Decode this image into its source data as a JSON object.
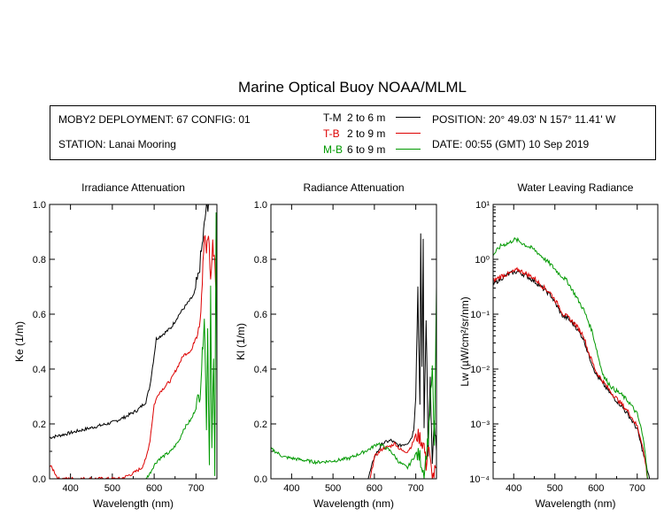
{
  "title": "Marine Optical Buoy NOAA/MLML",
  "info": {
    "deployment": "MOBY2 DEPLOYMENT: 67 CONFIG: 01",
    "station": "STATION: Lanai Mooring",
    "position": "POSITION: 20° 49.03' N   157° 11.41' W",
    "date": "DATE: 00:55 (GMT) 10 Sep 2019"
  },
  "legend": [
    {
      "code": "T-M",
      "range": "2 to 6  m",
      "color": "#000000"
    },
    {
      "code": "T-B",
      "range": "2 to 9  m",
      "color": "#dd0000"
    },
    {
      "code": "M-B",
      "range": "6 to 9  m",
      "color": "#009900"
    }
  ],
  "chart_data": [
    {
      "type": "line",
      "title": "Irradiance Attenuation",
      "xlabel": "Wavelength (nm)",
      "ylabel": "Ke  (1/m)",
      "xlim": [
        350,
        750
      ],
      "ylim": [
        0,
        1.0
      ],
      "xticks": [
        "400",
        "500",
        "600",
        "700"
      ],
      "yticks": [
        "0.0",
        "0.2",
        "0.4",
        "0.6",
        "0.8",
        "1.0"
      ],
      "series": [
        {
          "color": "#000000",
          "x": [
            350,
            380,
            420,
            460,
            500,
            530,
            560,
            580,
            590,
            600,
            605,
            615,
            640,
            660,
            680,
            695,
            705,
            715,
            720,
            725,
            730
          ],
          "y": [
            0.15,
            0.16,
            0.175,
            0.19,
            0.205,
            0.225,
            0.25,
            0.28,
            0.34,
            0.45,
            0.51,
            0.52,
            0.55,
            0.6,
            0.64,
            0.67,
            0.73,
            0.85,
            0.92,
            1.0,
            1.0
          ]
        },
        {
          "color": "#dd0000",
          "x": [
            350,
            360,
            370,
            520,
            550,
            570,
            580,
            590,
            600,
            610,
            640,
            660,
            670,
            690,
            700,
            710,
            715,
            720,
            725,
            730,
            735,
            740,
            745,
            750
          ],
          "y": [
            0.05,
            0.03,
            0.0,
            0.0,
            0.02,
            0.04,
            0.07,
            0.14,
            0.27,
            0.31,
            0.36,
            0.42,
            0.45,
            0.47,
            0.52,
            0.59,
            0.72,
            0.88,
            0.83,
            0.9,
            0.72,
            0.85,
            0.8,
            0.6
          ]
        },
        {
          "color": "#009900",
          "x": [
            580,
            590,
            600,
            610,
            640,
            660,
            670,
            690,
            700,
            710,
            715,
            720,
            725,
            728,
            732,
            735,
            738,
            742,
            745,
            748,
            750
          ],
          "y": [
            0.0,
            0.02,
            0.05,
            0.07,
            0.1,
            0.14,
            0.18,
            0.22,
            0.26,
            0.32,
            0.45,
            0.6,
            0.2,
            0.55,
            0.05,
            0.7,
            0.1,
            0.45,
            0.0,
            1.0,
            0.3
          ]
        }
      ]
    },
    {
      "type": "line",
      "title": "Radiance Attenuation",
      "xlabel": "Wavelength (nm)",
      "ylabel": "Kl  (1/m)",
      "xlim": [
        350,
        750
      ],
      "ylim": [
        0,
        1.0
      ],
      "xticks": [
        "400",
        "500",
        "600",
        "700"
      ],
      "yticks": [
        "0.0",
        "0.2",
        "0.4",
        "0.6",
        "0.8",
        "1.0"
      ],
      "series": [
        {
          "color": "#000000",
          "x": [
            585,
            600,
            620,
            640,
            660,
            680,
            690,
            695,
            700,
            705,
            710,
            712,
            715,
            718,
            720,
            725,
            730,
            735,
            740,
            745,
            750
          ],
          "y": [
            0.0,
            0.08,
            0.13,
            0.14,
            0.12,
            0.13,
            0.15,
            0.18,
            0.3,
            0.7,
            0.25,
            0.9,
            0.4,
            0.85,
            0.2,
            0.6,
            0.1,
            0.35,
            0.05,
            0.2,
            0.1
          ]
        },
        {
          "color": "#dd0000",
          "x": [
            590,
            600,
            620,
            640,
            650,
            660,
            670,
            680,
            690,
            700,
            710,
            720,
            725,
            730,
            740,
            750
          ],
          "y": [
            0.0,
            0.08,
            0.11,
            0.12,
            0.13,
            0.11,
            0.1,
            0.1,
            0.12,
            0.16,
            0.15,
            0.12,
            0.05,
            0.12,
            0.0,
            0.04
          ]
        },
        {
          "color": "#009900",
          "x": [
            350,
            380,
            420,
            460,
            500,
            540,
            570,
            590,
            600,
            610,
            620,
            640,
            660,
            680,
            700,
            710,
            720,
            730,
            740,
            745,
            750
          ],
          "y": [
            0.11,
            0.08,
            0.07,
            0.06,
            0.065,
            0.075,
            0.095,
            0.11,
            0.12,
            0.13,
            0.12,
            0.1,
            0.06,
            0.04,
            0.09,
            0.08,
            0.02,
            0.15,
            0.4,
            0.1,
            0.7
          ]
        }
      ]
    },
    {
      "type": "line",
      "title": "Water Leaving Radiance",
      "xlabel": "Wavelength (nm)",
      "ylabel": "Lw  (µW/cm²/sr/nm)",
      "yscale": "log",
      "xlim": [
        350,
        750
      ],
      "ylim": [
        0.0001,
        10
      ],
      "xticks": [
        "400",
        "500",
        "600",
        "700"
      ],
      "yticks": [
        "10⁻⁴",
        "10⁻³",
        "10⁻²",
        "10⁻¹",
        "10⁰",
        "10¹"
      ],
      "series": [
        {
          "color": "#000000",
          "x": [
            350,
            370,
            390,
            410,
            430,
            450,
            470,
            490,
            510,
            520,
            530,
            550,
            570,
            580,
            600,
            620,
            640,
            660,
            680,
            700,
            710,
            720,
            730
          ],
          "y": [
            0.35,
            0.45,
            0.55,
            0.6,
            0.5,
            0.4,
            0.3,
            0.22,
            0.12,
            0.09,
            0.085,
            0.06,
            0.035,
            0.02,
            0.008,
            0.005,
            0.0032,
            0.0022,
            0.0014,
            0.0008,
            0.0004,
            0.0002,
            0.0001
          ]
        },
        {
          "color": "#dd0000",
          "x": [
            350,
            370,
            390,
            410,
            430,
            450,
            470,
            490,
            510,
            520,
            530,
            550,
            570,
            580,
            600,
            620,
            640,
            660,
            680,
            700,
            710,
            720,
            725
          ],
          "y": [
            0.4,
            0.5,
            0.55,
            0.65,
            0.55,
            0.45,
            0.32,
            0.24,
            0.14,
            0.1,
            0.09,
            0.065,
            0.04,
            0.022,
            0.009,
            0.0055,
            0.0035,
            0.0024,
            0.0016,
            0.0009,
            0.0005,
            0.0002,
            0.0001
          ]
        },
        {
          "color": "#009900",
          "x": [
            350,
            370,
            390,
            400,
            410,
            430,
            450,
            470,
            490,
            510,
            530,
            550,
            570,
            590,
            600,
            610,
            620,
            640,
            660,
            680,
            700,
            710,
            720,
            725
          ],
          "y": [
            1.2,
            1.8,
            2.0,
            2.3,
            2.2,
            1.8,
            1.5,
            1.1,
            0.8,
            0.55,
            0.4,
            0.22,
            0.12,
            0.05,
            0.025,
            0.012,
            0.007,
            0.0045,
            0.0035,
            0.0025,
            0.0015,
            0.0008,
            0.0003,
            0.0001
          ]
        }
      ]
    }
  ]
}
